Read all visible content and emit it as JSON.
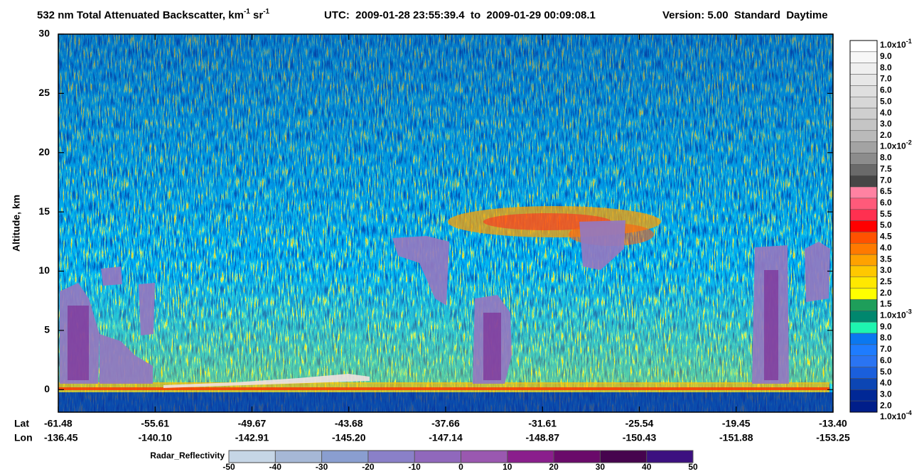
{
  "chart_data": {
    "type": "curtain",
    "title": [
      "532 nm Total Attenuated Backscatter, km",
      "-1",
      " sr",
      "-1"
    ],
    "utc": "UTC:  2009-01-28 23:55:39.4  to  2009-01-29 00:09:08.1",
    "version": "Version: 5.00  Standard  Daytime",
    "ylabel": "Altitude, km",
    "ylim": [
      -1.9,
      30
    ],
    "yticks": [
      0,
      5,
      10,
      15,
      20,
      25,
      30
    ],
    "lat_label": "Lat",
    "lon_label": "Lon",
    "lat_ticks": [
      -61.48,
      -55.61,
      -49.67,
      -43.68,
      -37.66,
      -31.61,
      -25.54,
      -19.45,
      {
        "value": -13.4,
        "label": "-13.40"
      }
    ],
    "lon_ticks": [
      -136.45,
      {
        "value": -140.1,
        "label": "-140.10"
      },
      -142.91,
      {
        "value": -145.2,
        "label": "-145.20"
      },
      -147.14,
      -148.87,
      -150.43,
      -151.88,
      -153.25
    ],
    "backscatter_scale": {
      "labels": [
        {
          "text": "1.0x10",
          "sup": "-1"
        },
        "9.0",
        "8.0",
        "7.0",
        "6.0",
        "5.0",
        "4.0",
        "3.0",
        "2.0",
        {
          "text": "1.0x10",
          "sup": "-2"
        },
        "8.0",
        "7.5",
        "7.0",
        "6.5",
        "6.0",
        "5.5",
        "5.0",
        "4.5",
        "4.0",
        "3.5",
        "3.0",
        "2.5",
        "2.0",
        "1.5",
        {
          "text": "1.0x10",
          "sup": "-3"
        },
        "9.0",
        "8.0",
        "7.0",
        "6.0",
        "5.0",
        "4.0",
        "3.0",
        "2.0",
        {
          "text": "1.0x10",
          "sup": "-4"
        }
      ],
      "colors": [
        "#ffffff",
        "#f7f7f7",
        "#efefef",
        "#e7e7e7",
        "#dfdfdf",
        "#d7d7d7",
        "#cfcfcf",
        "#c5c5c5",
        "#bababa",
        "#a3a3a3",
        "#8c8c8c",
        "#6a6a6a",
        "#464646",
        "#ff82a2",
        "#ff5a7a",
        "#ff3050",
        "#ff0000",
        "#ff5200",
        "#ff7a00",
        "#ffa200",
        "#ffc800",
        "#ffe800",
        "#ffff00",
        "#1e9e5a",
        "#00876e",
        "#1ef5b0",
        "#0a78f0",
        "#1e7cff",
        "#2a74f2",
        "#1a5fdc",
        "#0c46b4",
        "#002896",
        "#001e8a"
      ]
    },
    "radar": {
      "label": "Radar_Reflectivity",
      "xlim": [
        -50,
        50
      ],
      "ticks": [
        -50,
        -40,
        -30,
        -20,
        -10,
        0,
        10,
        20,
        30,
        40,
        50
      ],
      "colors": [
        "#c6d6e6",
        "#a6b8d6",
        "#8a9ed0",
        "#8a80c8",
        "#9068bc",
        "#9a58b0",
        "#8a1e8c",
        "#6a0a6a",
        "#46044e",
        "#3c1080"
      ]
    }
  }
}
